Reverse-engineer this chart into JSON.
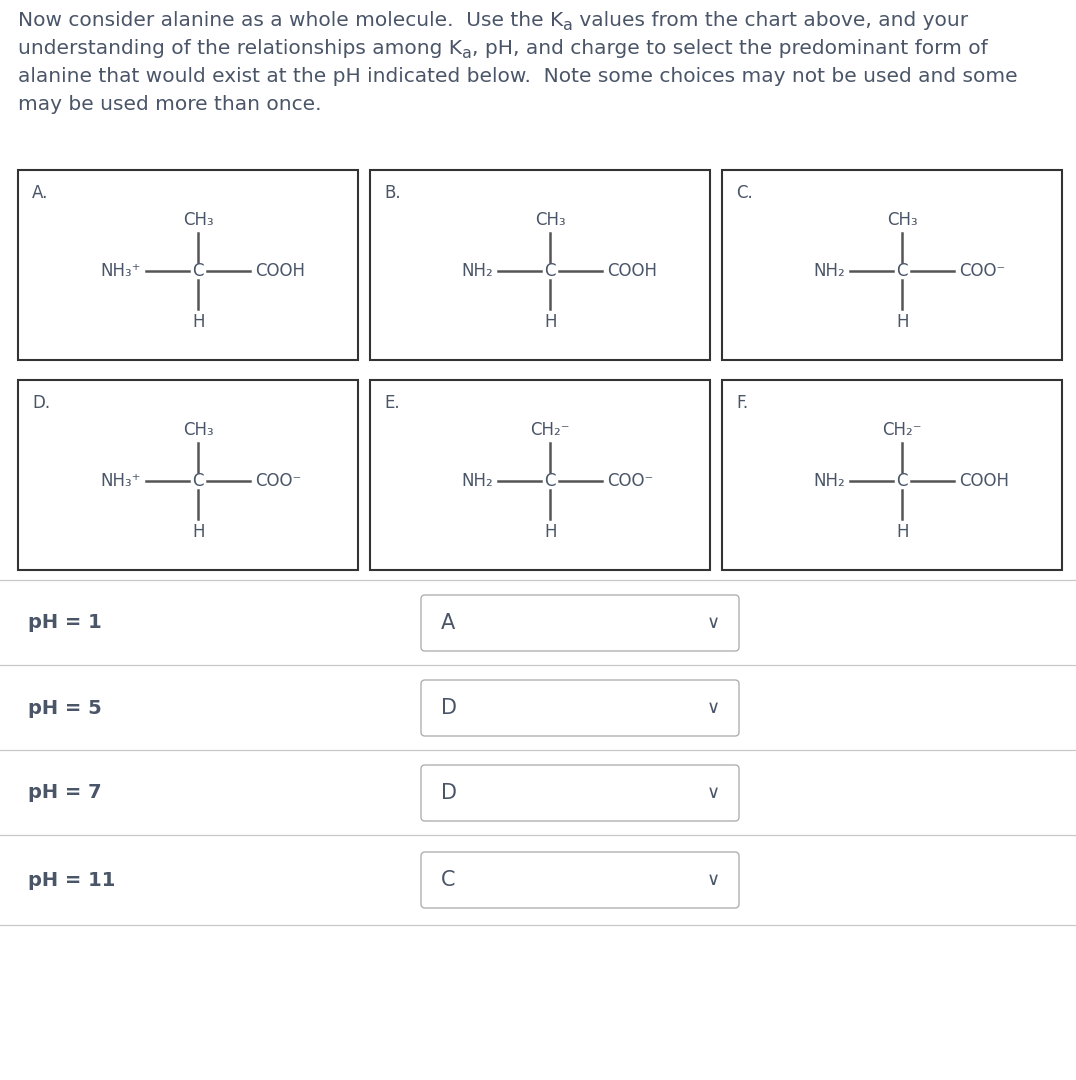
{
  "text_color": "#4a5568",
  "bg_color": "#ffffff",
  "molecules": [
    {
      "label": "A.",
      "top_group": "CH₃",
      "left_group": "NH₃⁺",
      "right_group": "COOH",
      "bottom_group": "H",
      "center": "C"
    },
    {
      "label": "B.",
      "top_group": "CH₃",
      "left_group": "NH₂",
      "right_group": "COOH",
      "bottom_group": "H",
      "center": "C"
    },
    {
      "label": "C.",
      "top_group": "CH₃",
      "left_group": "NH₂",
      "right_group": "COO⁻",
      "bottom_group": "H",
      "center": "C"
    },
    {
      "label": "D.",
      "top_group": "CH₃",
      "left_group": "NH₃⁺",
      "right_group": "COO⁻",
      "bottom_group": "H",
      "center": "C"
    },
    {
      "label": "E.",
      "top_group": "CH₂⁻",
      "left_group": "NH₂",
      "right_group": "COO⁻",
      "bottom_group": "H",
      "center": "C"
    },
    {
      "label": "F.",
      "top_group": "CH₂⁻",
      "left_group": "NH₂",
      "right_group": "COOH",
      "bottom_group": "H",
      "center": "C"
    }
  ],
  "ph_rows": [
    {
      "ph_label": "pH = 1",
      "answer": "A"
    },
    {
      "ph_label": "pH = 5",
      "answer": "D"
    },
    {
      "ph_label": "pH = 7",
      "answer": "D"
    },
    {
      "ph_label": "pH = 11",
      "answer": "C"
    }
  ],
  "para_lines": [
    [
      {
        "text": "Now consider alanine as a whole molecule.  Use the K",
        "sub": false
      },
      {
        "text": "a",
        "sub": true
      },
      {
        "text": " values from the chart above, and your",
        "sub": false
      }
    ],
    [
      {
        "text": "understanding of the relationships among K",
        "sub": false
      },
      {
        "text": "a",
        "sub": true
      },
      {
        "text": ", pH, and charge to select the predominant form of",
        "sub": false
      }
    ],
    [
      {
        "text": "alanine that would exist at the pH indicated below.  Note some choices may not be used and some",
        "sub": false
      }
    ],
    [
      {
        "text": "may be used more than once.",
        "sub": false
      }
    ]
  ]
}
